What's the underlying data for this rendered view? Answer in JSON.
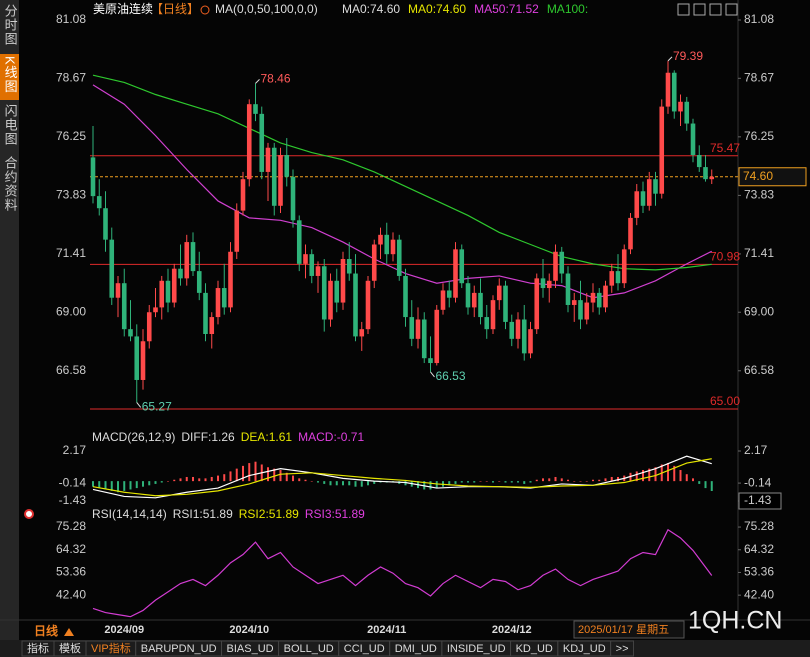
{
  "chart_data": {
    "type": "candlestick",
    "ylim": [
      65,
      81.08
    ],
    "yticks": [
      81.08,
      78.67,
      76.25,
      73.83,
      71.41,
      {
        "value": 69,
        "label": "69.00"
      },
      66.58
    ],
    "grid": false,
    "up_color": "#ff4a4a",
    "down_color": "#2fb37a",
    "categories": [
      null,
      null,
      null,
      null,
      null,
      "2024/09",
      null,
      null,
      null,
      null,
      null,
      null,
      null,
      null,
      null,
      null,
      null,
      null,
      null,
      null,
      null,
      null,
      null,
      null,
      null,
      "2024/10",
      null,
      null,
      null,
      null,
      null,
      null,
      null,
      null,
      null,
      null,
      null,
      null,
      null,
      null,
      null,
      null,
      null,
      null,
      null,
      null,
      null,
      "2024/11",
      null,
      null,
      null,
      null,
      null,
      null,
      null,
      null,
      null,
      null,
      null,
      null,
      null,
      null,
      null,
      null,
      null,
      null,
      null,
      "2024/12",
      null,
      null,
      null,
      null,
      null,
      null,
      null,
      null,
      null,
      null,
      null,
      null,
      null,
      null,
      null,
      null,
      null,
      null,
      null,
      null,
      null,
      null,
      null,
      null,
      null,
      null,
      null,
      null,
      null,
      null
    ],
    "candles": [
      [
        75.4,
        76.7,
        73.5,
        73.8
      ],
      [
        73.8,
        74.5,
        73.0,
        73.3
      ],
      [
        73.3,
        74.0,
        71.5,
        72.0
      ],
      [
        72.0,
        72.5,
        69.3,
        69.6
      ],
      [
        69.6,
        70.5,
        68.8,
        70.2
      ],
      [
        70.2,
        70.8,
        68.0,
        68.3
      ],
      [
        68.3,
        69.5,
        67.8,
        68.0
      ],
      [
        68.0,
        68.5,
        65.27,
        66.2
      ],
      [
        66.2,
        68.3,
        65.8,
        67.8
      ],
      [
        67.8,
        69.3,
        67.5,
        69.0
      ],
      [
        69.0,
        70.0,
        68.8,
        69.2
      ],
      [
        69.2,
        70.5,
        68.7,
        70.3
      ],
      [
        70.3,
        70.8,
        69.0,
        69.4
      ],
      [
        69.4,
        71.0,
        69.2,
        70.8
      ],
      [
        70.8,
        71.8,
        70.1,
        70.4
      ],
      [
        70.4,
        72.2,
        70.1,
        71.9
      ],
      [
        71.9,
        72.3,
        70.5,
        70.7
      ],
      [
        70.7,
        71.5,
        69.5,
        69.8
      ],
      [
        69.8,
        70.2,
        67.8,
        68.1
      ],
      [
        68.1,
        69.0,
        67.5,
        68.8
      ],
      [
        68.8,
        70.3,
        68.5,
        70.0
      ],
      [
        70.0,
        71.0,
        68.9,
        69.2
      ],
      [
        69.2,
        71.9,
        69.0,
        71.5
      ],
      [
        71.5,
        73.5,
        71.2,
        73.2
      ],
      [
        73.2,
        74.8,
        73.0,
        74.5
      ],
      [
        74.5,
        77.8,
        74.2,
        77.6
      ],
      [
        77.6,
        78.46,
        76.9,
        77.2
      ],
      [
        77.2,
        77.5,
        74.5,
        74.8
      ],
      [
        74.8,
        76.0,
        73.6,
        75.8
      ],
      [
        75.8,
        76.0,
        73.0,
        73.4
      ],
      [
        73.4,
        75.8,
        73.1,
        75.5
      ],
      [
        75.5,
        76.2,
        74.2,
        74.6
      ],
      [
        74.6,
        74.9,
        72.5,
        72.8
      ],
      [
        72.8,
        73.0,
        70.7,
        71.0
      ],
      [
        71.0,
        71.8,
        70.4,
        71.4
      ],
      [
        71.4,
        71.6,
        70.2,
        70.5
      ],
      [
        70.5,
        71.1,
        69.8,
        70.9
      ],
      [
        70.9,
        71.2,
        68.2,
        68.7
      ],
      [
        68.7,
        70.6,
        68.4,
        70.3
      ],
      [
        70.3,
        70.8,
        69.0,
        69.4
      ],
      [
        69.4,
        71.5,
        69.1,
        71.2
      ],
      [
        71.2,
        71.9,
        70.3,
        70.6
      ],
      [
        70.6,
        71.4,
        67.8,
        68.0
      ],
      [
        68.0,
        68.6,
        67.4,
        68.3
      ],
      [
        68.3,
        70.5,
        68.1,
        70.3
      ],
      [
        70.3,
        72.0,
        70.0,
        71.8
      ],
      [
        71.8,
        72.5,
        71.2,
        72.2
      ],
      [
        72.2,
        72.7,
        71.0,
        71.4
      ],
      [
        71.4,
        72.3,
        71.1,
        72.0
      ],
      [
        72.0,
        72.2,
        70.3,
        70.5
      ],
      [
        70.5,
        70.8,
        68.4,
        68.8
      ],
      [
        68.8,
        69.5,
        67.6,
        67.9
      ],
      [
        67.9,
        69.2,
        67.5,
        68.7
      ],
      [
        68.7,
        69.0,
        66.9,
        67.1
      ],
      [
        67.1,
        68.0,
        66.53,
        66.9
      ],
      [
        66.9,
        69.3,
        66.8,
        69.1
      ],
      [
        69.1,
        70.2,
        68.9,
        69.9
      ],
      [
        69.9,
        70.3,
        69.2,
        69.6
      ],
      [
        69.6,
        71.9,
        69.4,
        71.6
      ],
      [
        71.6,
        71.8,
        70.0,
        70.2
      ],
      [
        70.2,
        70.5,
        68.9,
        69.2
      ],
      [
        69.2,
        70.1,
        68.8,
        69.8
      ],
      [
        69.8,
        70.4,
        68.5,
        68.8
      ],
      [
        68.8,
        69.3,
        67.9,
        68.3
      ],
      [
        68.3,
        69.7,
        68.1,
        69.5
      ],
      [
        69.5,
        70.4,
        69.1,
        70.1
      ],
      [
        70.1,
        70.3,
        68.3,
        68.6
      ],
      [
        68.6,
        68.9,
        67.6,
        67.9
      ],
      [
        67.9,
        69.0,
        67.5,
        68.7
      ],
      [
        68.7,
        69.3,
        67.0,
        67.3
      ],
      [
        67.3,
        68.6,
        67.1,
        68.3
      ],
      [
        68.3,
        70.6,
        68.1,
        70.4
      ],
      [
        70.4,
        71.2,
        69.6,
        70.0
      ],
      [
        70.0,
        70.6,
        69.4,
        70.3
      ],
      [
        70.3,
        71.8,
        70.0,
        71.5
      ],
      [
        71.5,
        71.7,
        70.2,
        70.6
      ],
      [
        70.6,
        70.9,
        69.0,
        69.3
      ],
      [
        69.3,
        69.8,
        68.6,
        69.5
      ],
      [
        69.5,
        70.3,
        68.3,
        68.7
      ],
      [
        68.7,
        69.8,
        68.5,
        69.4
      ],
      [
        69.4,
        70.2,
        69.0,
        69.8
      ],
      [
        69.8,
        70.0,
        68.9,
        69.2
      ],
      [
        69.2,
        70.3,
        69.0,
        70.1
      ],
      [
        70.1,
        71.0,
        69.8,
        70.7
      ],
      [
        70.7,
        71.4,
        69.9,
        70.2
      ],
      [
        70.2,
        71.8,
        70.0,
        71.6
      ],
      [
        71.6,
        73.1,
        71.4,
        72.9
      ],
      [
        72.9,
        74.3,
        72.6,
        74.0
      ],
      [
        74.0,
        74.4,
        73.1,
        73.4
      ],
      [
        73.4,
        74.8,
        73.2,
        74.5
      ],
      [
        74.5,
        74.8,
        73.4,
        73.9
      ],
      [
        73.9,
        77.8,
        73.7,
        77.5
      ],
      [
        77.5,
        79.39,
        77.2,
        78.9
      ],
      [
        78.9,
        79.0,
        77.0,
        77.3
      ],
      [
        77.3,
        78.0,
        76.7,
        77.7
      ],
      [
        77.7,
        77.9,
        76.5,
        76.8
      ],
      [
        76.8,
        77.0,
        75.2,
        75.5
      ],
      [
        75.5,
        75.9,
        74.8,
        75.0
      ],
      [
        75.0,
        75.5,
        74.4,
        74.5
      ],
      [
        74.5,
        74.9,
        74.3,
        74.6
      ]
    ],
    "ma_x": [
      0,
      5,
      10,
      15,
      20,
      25,
      30,
      35,
      40,
      45,
      50,
      55,
      60,
      65,
      70,
      75,
      80,
      85,
      90,
      95,
      99
    ],
    "ma_lines": [
      {
        "color": "#d040d0",
        "values": [
          78.4,
          77.6,
          76.3,
          74.9,
          73.6,
          72.9,
          72.8,
          72.5,
          71.9,
          71.2,
          70.6,
          70.2,
          70.4,
          70.5,
          70.2,
          70.1,
          69.6,
          69.8,
          70.3,
          71.0,
          71.52
        ]
      },
      {
        "color": "#2ec82e",
        "values": [
          78.8,
          78.5,
          78.0,
          77.6,
          77.2,
          76.6,
          76.0,
          75.6,
          75.3,
          74.8,
          74.2,
          73.6,
          73.0,
          72.3,
          71.8,
          71.3,
          71.0,
          70.8,
          70.75,
          70.85,
          70.98
        ]
      }
    ],
    "hlines": [
      {
        "value": 75.47,
        "color": "#e02a2a"
      },
      {
        "value": 70.98,
        "color": "#e02a2a"
      },
      {
        "value": 65,
        "label": "65.00",
        "color": "#e02a2a"
      }
    ],
    "last_price": {
      "value": 74.6,
      "label": "74.60",
      "color": "#f0a020"
    },
    "macd": {
      "legend": [
        {
          "text": "MACD(26,12,9)",
          "color": "#dddddd"
        },
        {
          "text": "DIFF:1.26",
          "color": "#dddddd"
        },
        {
          "text": "DEA:1.61",
          "color": "#e6e600"
        },
        {
          "text": "MACD:-0.71",
          "color": "#e040e0"
        }
      ],
      "ylim": [
        -1.43,
        2.17
      ],
      "yticks": [
        2.17,
        -0.14,
        -1.43
      ],
      "x": [
        0,
        5,
        10,
        15,
        20,
        25,
        30,
        35,
        40,
        45,
        50,
        55,
        60,
        65,
        70,
        75,
        80,
        85,
        90,
        95,
        99
      ],
      "diff": {
        "color": "#ffffff",
        "values": [
          -0.6,
          -1.1,
          -1.2,
          -0.8,
          -0.5,
          0.4,
          0.9,
          0.6,
          0.2,
          0.0,
          -0.1,
          -0.5,
          -0.4,
          -0.4,
          -0.5,
          -0.2,
          -0.3,
          0.2,
          0.9,
          1.8,
          1.26
        ]
      },
      "dea": {
        "color": "#e6e600",
        "values": [
          -0.4,
          -0.8,
          -1.05,
          -0.95,
          -0.7,
          -0.2,
          0.5,
          0.6,
          0.4,
          0.2,
          0.05,
          -0.2,
          -0.35,
          -0.4,
          -0.45,
          -0.35,
          -0.3,
          -0.1,
          0.4,
          1.3,
          1.61
        ]
      },
      "histogram": [
        -0.4,
        -0.5,
        -0.6,
        -0.7,
        -0.8,
        -0.7,
        -0.6,
        -0.5,
        -0.4,
        -0.3,
        -0.2,
        -0.1,
        0.0,
        0.1,
        0.2,
        0.3,
        0.3,
        0.2,
        0.2,
        0.3,
        0.4,
        0.5,
        0.7,
        0.9,
        1.1,
        1.3,
        1.4,
        1.2,
        1.0,
        0.9,
        0.8,
        0.6,
        0.4,
        0.2,
        0.1,
        0.0,
        -0.1,
        -0.2,
        -0.3,
        -0.3,
        -0.3,
        -0.3,
        -0.4,
        -0.4,
        -0.3,
        -0.2,
        -0.1,
        -0.1,
        -0.1,
        -0.2,
        -0.3,
        -0.4,
        -0.5,
        -0.6,
        -0.6,
        -0.5,
        -0.4,
        -0.3,
        -0.2,
        -0.1,
        -0.1,
        -0.1,
        0.0,
        0.0,
        -0.1,
        0.0,
        -0.1,
        -0.1,
        -0.1,
        -0.2,
        -0.1,
        0.1,
        0.2,
        0.2,
        0.3,
        0.2,
        0.1,
        0.0,
        0.0,
        0.0,
        0.1,
        0.1,
        0.2,
        0.3,
        0.3,
        0.4,
        0.6,
        0.7,
        0.8,
        0.9,
        1.0,
        1.2,
        1.3,
        1.1,
        0.8,
        0.5,
        0.2,
        -0.2,
        -0.5,
        -0.71
      ]
    },
    "rsi": {
      "legend": [
        {
          "text": "RSI(14,14,14)",
          "color": "#dddddd"
        },
        {
          "text": "RSI1:51.89",
          "color": "#dddddd"
        },
        {
          "text": "RSI2:51.89",
          "color": "#e6e600"
        },
        {
          "text": "RSI3:51.89",
          "color": "#e040e0"
        }
      ],
      "ylim": [
        30.4,
        81.1
      ],
      "yticks": [
        75.28,
        64.32,
        53.36,
        {
          "value": 42.4,
          "label": "42.40"
        }
      ],
      "color": "#d23cd2",
      "x": [
        0,
        2,
        4,
        6,
        8,
        10,
        12,
        14,
        16,
        18,
        20,
        22,
        24,
        26,
        28,
        30,
        32,
        34,
        36,
        38,
        40,
        42,
        44,
        46,
        48,
        50,
        52,
        54,
        56,
        58,
        60,
        62,
        64,
        66,
        68,
        70,
        72,
        74,
        76,
        78,
        80,
        82,
        84,
        86,
        88,
        90,
        92,
        94,
        96,
        99
      ],
      "values": [
        36,
        34,
        33,
        32,
        35,
        40,
        44,
        48,
        50,
        47,
        52,
        58,
        62,
        68,
        60,
        63,
        56,
        52,
        48,
        50,
        52,
        47,
        52,
        56,
        53,
        48,
        46,
        42,
        48,
        52,
        49,
        46,
        50,
        49,
        45,
        47,
        52,
        55,
        50,
        47,
        50,
        52,
        54,
        60,
        63,
        62,
        74,
        70,
        64,
        51.89
      ]
    }
  },
  "ui": {
    "sidebar": [
      "分时图",
      "K线图",
      "闪电图",
      "合约资料"
    ],
    "header": {
      "symbol": "美原油连续",
      "period": "【日线】",
      "ma_params": "MA(0,0,50,100,0,0)",
      "ma_legend": [
        {
          "text": "MA0:74.60",
          "color": "#dddddd"
        },
        {
          "text": "MA0:74.60",
          "color": "#e6e600"
        },
        {
          "text": "MA50:71.52",
          "color": "#e040e0"
        },
        {
          "text": "MA100:",
          "color": "#2ec82e"
        }
      ]
    },
    "period_button": "日线",
    "cursor_date": "2025/01/17 星期五",
    "watermark": "1QH.CN",
    "tabs": [
      "指标",
      "模板",
      "VIP指标",
      "BARUPDN_UD",
      "BIAS_UD",
      "BOLL_UD",
      "CCI_UD",
      "DMI_UD",
      "INSIDE_UD",
      "KD_UD",
      "KDJ_UD",
      ">>"
    ]
  }
}
